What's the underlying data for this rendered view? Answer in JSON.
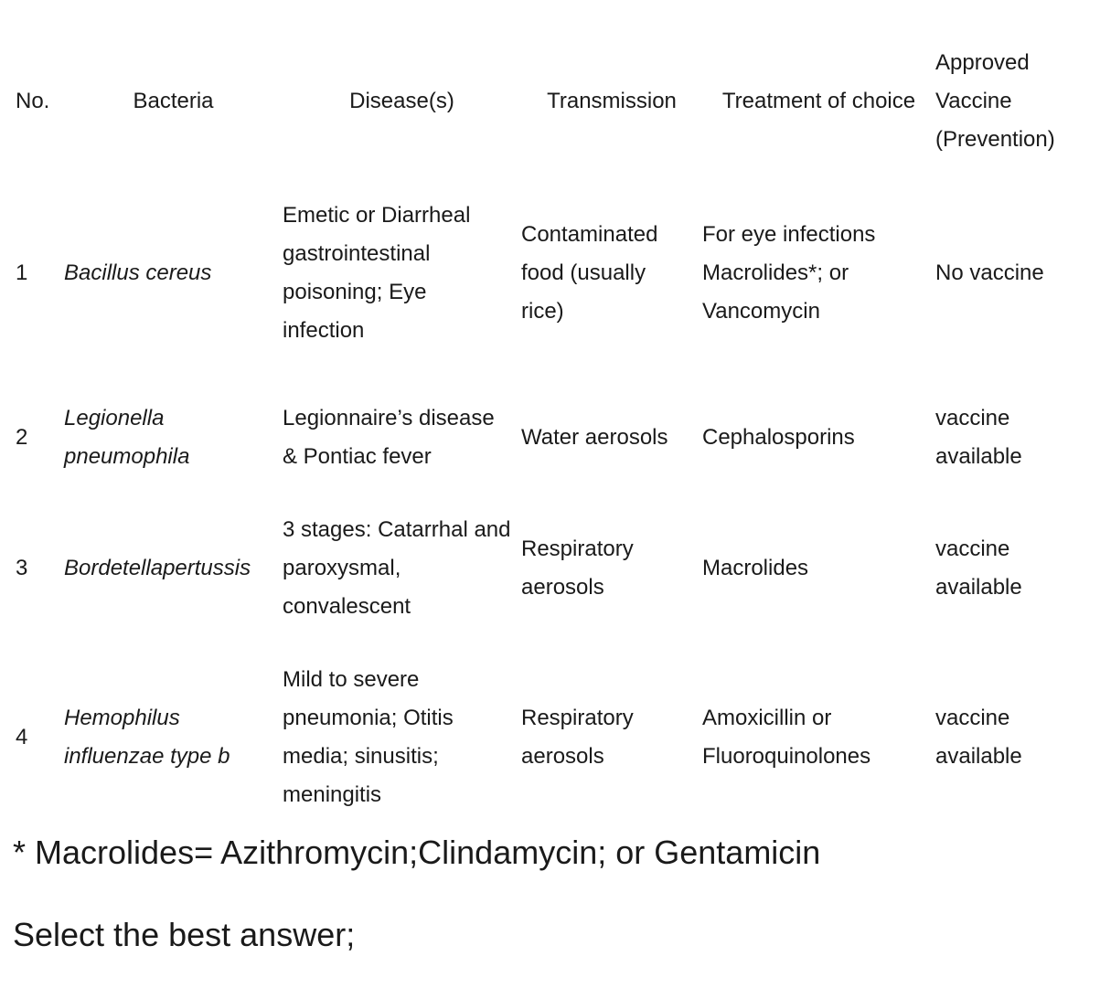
{
  "table": {
    "headers": {
      "no": "No.",
      "bacteria": "Bacteria",
      "disease": "Disease(s)",
      "transmission": "Transmission",
      "treatment": "Treatment of choice",
      "vaccine": "Approved\nVaccine\n(Prevention)"
    },
    "rows": [
      {
        "no": "1",
        "bacteria": "Bacillus cereus",
        "disease": "Emetic or Diarrheal\ngastrointestinal\npoisoning; Eye\ninfection",
        "transmission": "Contaminated\nfood (usually\nrice)",
        "treatment": "For eye infections\nMacrolides*; or\nVancomycin",
        "vaccine": "No vaccine"
      },
      {
        "no": "2",
        "bacteria": "Legionella\npneumophila",
        "disease": "Legionnaire’s disease\n& Pontiac fever",
        "transmission": "Water aerosols",
        "treatment": "Cephalosporins",
        "vaccine": "vaccine\navailable"
      },
      {
        "no": "3",
        "bacteria": "Bordetellapertussis",
        "disease": "3 stages: Catarrhal and\nparoxysmal,\nconvalescent",
        "transmission": "Respiratory\naerosols",
        "treatment": "Macrolides",
        "vaccine": "vaccine\navailable"
      },
      {
        "no": "4",
        "bacteria": "Hemophilus\ninfluenzae type b",
        "disease": "Mild to severe\npneumonia; Otitis\nmedia; sinusitis;\nmeningitis",
        "transmission": "Respiratory\naerosols",
        "treatment": "Amoxicillin or\nFluoroquinolones",
        "vaccine": "vaccine\navailable"
      }
    ]
  },
  "footnote": "* Macrolides= Azithromycin;Clindamycin; or Gentamicin",
  "prompt": "Select the best answer;"
}
